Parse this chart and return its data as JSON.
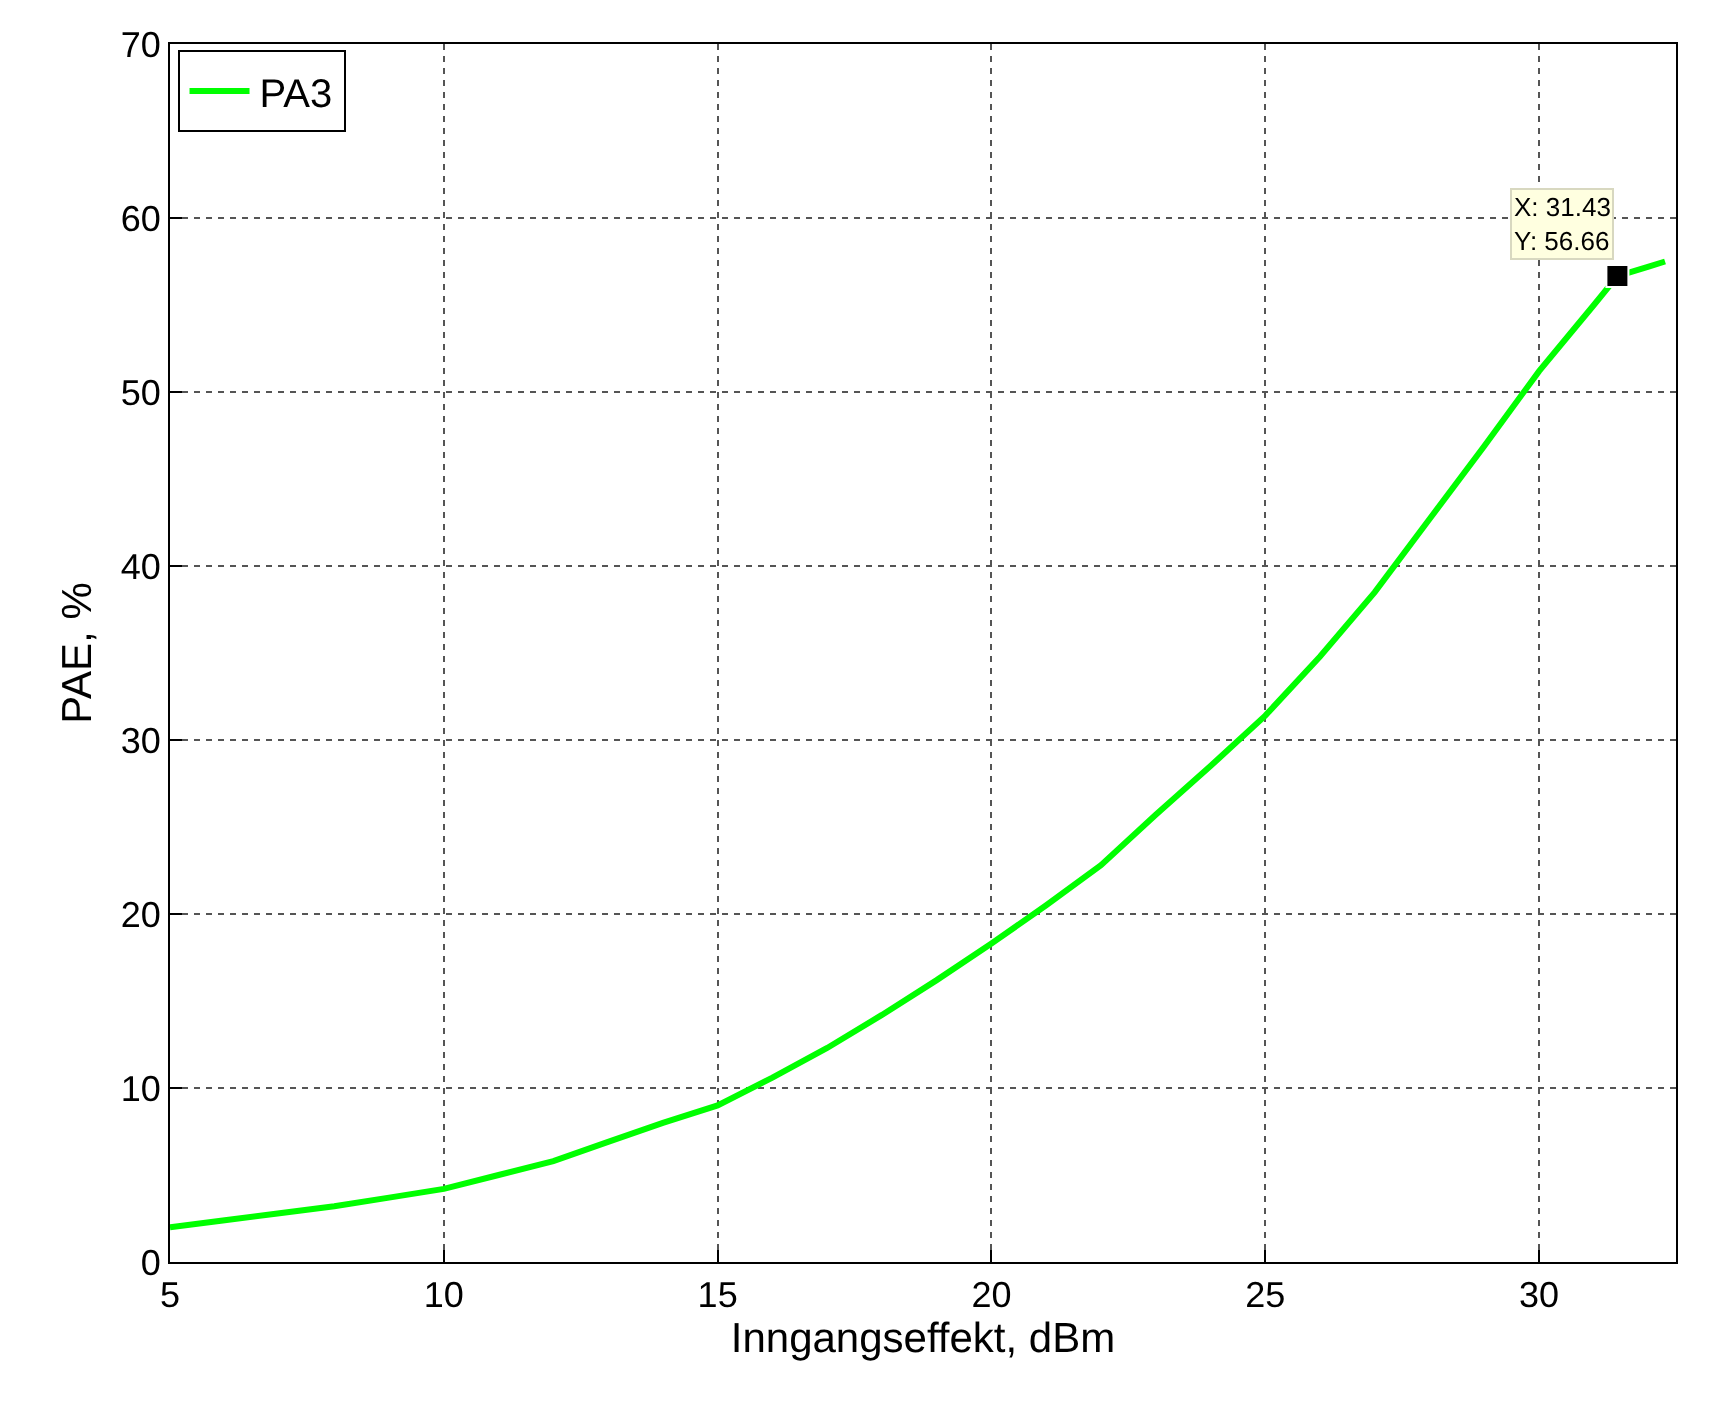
{
  "chart_data": {
    "type": "line",
    "xlabel": "Inngangseffekt, dBm",
    "ylabel": "PAE, %",
    "x": [
      5,
      6,
      7,
      8,
      9,
      10,
      11,
      12,
      13,
      14,
      15,
      16,
      17,
      18,
      19,
      20,
      21,
      22,
      23,
      24,
      25,
      26,
      27,
      28,
      29,
      30,
      31,
      31.43,
      32,
      32.3
    ],
    "series": [
      {
        "name": "PA3",
        "color": "#00ff00",
        "values": [
          2.0,
          2.4,
          2.8,
          3.2,
          3.7,
          4.2,
          5.0,
          5.8,
          6.9,
          8.0,
          9.0,
          10.6,
          12.3,
          14.2,
          16.2,
          18.3,
          20.5,
          22.8,
          25.7,
          28.5,
          31.4,
          34.8,
          38.5,
          42.7,
          46.9,
          51.2,
          55.0,
          56.66,
          57.2,
          57.5
        ]
      }
    ],
    "xlim": [
      5,
      32.5
    ],
    "xticks": [
      5,
      10,
      15,
      20,
      25,
      30
    ],
    "ylim": [
      0,
      70
    ],
    "yticks": [
      0,
      10,
      20,
      30,
      40,
      50,
      60,
      70
    ],
    "grid": true,
    "legend": "top left",
    "line_style": "solid",
    "marker": "none",
    "annotations": [
      {
        "text": "X: 31.43\nY: 56.66",
        "x": 31.43,
        "y": 56.66
      }
    ]
  }
}
